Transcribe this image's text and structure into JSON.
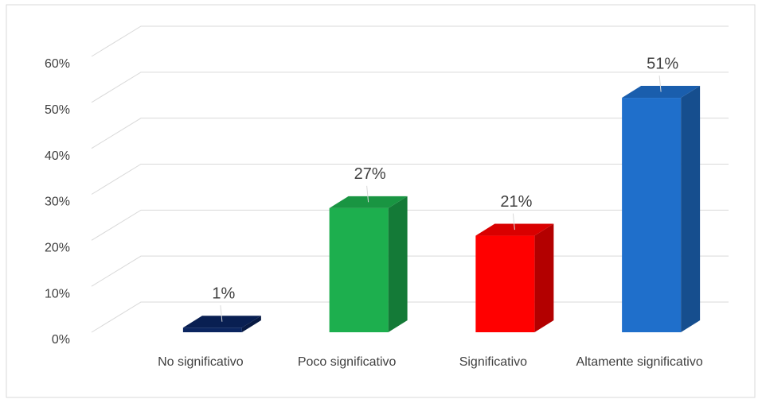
{
  "chart_data": {
    "type": "bar3d",
    "categories": [
      "No significativo",
      "Poco significativo",
      "Significativo",
      "Altamente significativo"
    ],
    "values": [
      1,
      27,
      21,
      51
    ],
    "value_labels": [
      "1%",
      "27%",
      "21%",
      "51%"
    ],
    "colors": [
      "#0b2560",
      "#1daf4e",
      "#ff0000",
      "#1f6fcb"
    ],
    "ylim": [
      0,
      60
    ],
    "yticks": [
      {
        "value": 0,
        "label": "0%"
      },
      {
        "value": 10,
        "label": "10%"
      },
      {
        "value": 20,
        "label": "20%"
      },
      {
        "value": 30,
        "label": "30%"
      },
      {
        "value": 40,
        "label": "40%"
      },
      {
        "value": 50,
        "label": "50%"
      },
      {
        "value": 60,
        "label": "60%"
      }
    ],
    "grid": true
  }
}
